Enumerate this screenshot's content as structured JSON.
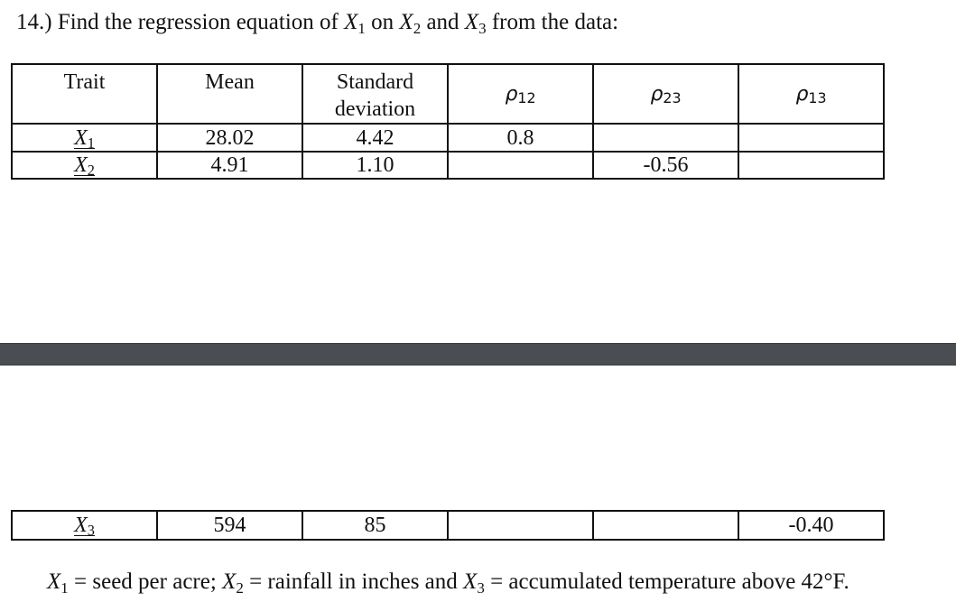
{
  "question": {
    "prefix": "14.) Find the regression equation of",
    "var1": "X",
    "var1_sub": "1",
    "middle1": "on",
    "var2": "X",
    "var2_sub": "2",
    "middle2": "and",
    "var3": "X",
    "var3_sub": "3",
    "suffix": "from the data:"
  },
  "table": {
    "headers": {
      "trait": "Trait",
      "mean": "Mean",
      "std": "Standard deviation",
      "rho12_symbol": "ρ",
      "rho12_sub": "12",
      "rho23_symbol": "ρ",
      "rho23_sub": "23",
      "rho13_symbol": "ρ",
      "rho13_sub": "13"
    },
    "rows": [
      {
        "trait": "X",
        "trait_sub": "1",
        "mean": "28.02",
        "std": "4.42",
        "rho12": "0.8",
        "rho23": "",
        "rho13": ""
      },
      {
        "trait": "X",
        "trait_sub": "2",
        "mean": "4.91",
        "std": "1.10",
        "rho12": "",
        "rho23": "-0.56",
        "rho13": ""
      },
      {
        "trait": "X",
        "trait_sub": "3",
        "mean": "594",
        "std": "85",
        "rho12": "",
        "rho23": "",
        "rho13": "-0.40"
      }
    ]
  },
  "legend": {
    "var1": "X",
    "var1_sub": "1",
    "desc1": "= seed per acre;",
    "var2": "X",
    "var2_sub": "2",
    "desc2": "= rainfall in inches and",
    "var3": "X",
    "var3_sub": "3",
    "desc3": "= accumulated temperature above 42°F."
  }
}
